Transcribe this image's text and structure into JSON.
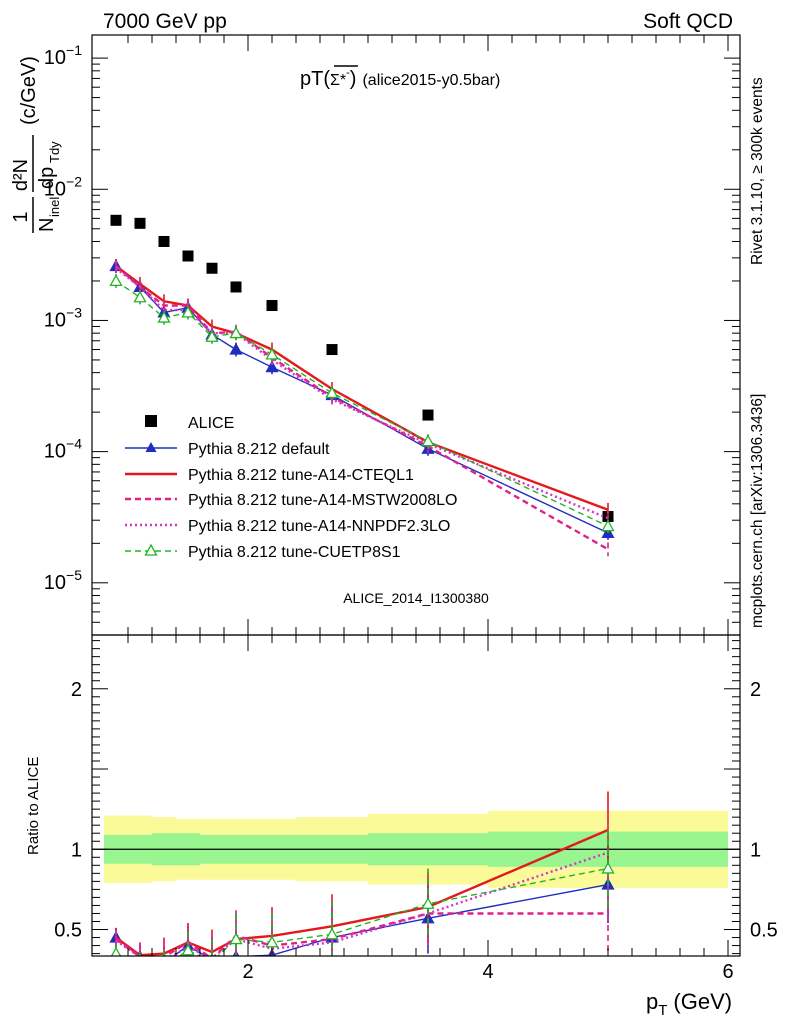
{
  "header": {
    "left": "7000 GeV pp",
    "right": "Soft QCD"
  },
  "side": {
    "rivet": "Rivet 3.1.10, ≥ 300k events",
    "mcplots": "mcplots.cern.ch [arXiv:1306.3436]"
  },
  "plot_title": {
    "prefix": "pT(",
    "particle": "Σ*",
    "charge": "-",
    "suffix": ")",
    "name": "(alice2015-y0.5bar)"
  },
  "watermark": "ALICE_2014_I1300380",
  "labels": {
    "ylabel_top_num": "1",
    "ylabel_top_den": "N",
    "ylabel_top_den_sub": "inel",
    "ylabel_top_frac_num": "d²N",
    "ylabel_top_frac_den": "dp",
    "ylabel_top_frac_den_sub": "Tdy",
    "ylabel_top_units": "(c/GeV)",
    "ylabel_bottom": "Ratio to ALICE",
    "xlabel_main": "p",
    "xlabel_sub": "T",
    "xlabel_units": "(GeV)"
  },
  "colors": {
    "alice": "#000000",
    "default": "#1f2ebf",
    "cteql1": "#e31a1c",
    "mstw": "#e0218a",
    "nnpdf": "#d633c9",
    "cuetp": "#22b522",
    "band_inner": "#99f58f",
    "band_outer": "#fafa99"
  },
  "chart_data": [
    {
      "type": "scatter",
      "title": "pT(Σ*-bar) (alice2015-y0.5bar)",
      "xlabel": "p_T (GeV)",
      "ylabel": "1/N_inel d²N/dp_T dy (c/GeV)",
      "yscale": "log",
      "xlim": [
        0.7,
        6.1
      ],
      "ylim": [
        4e-06,
        0.15
      ],
      "y_ticks": [
        1e-05,
        0.0001,
        0.001,
        0.01,
        0.1
      ],
      "y_tick_labels": [
        {
          "base": "10",
          "exp": "−5"
        },
        {
          "base": "10",
          "exp": "−4"
        },
        {
          "base": "10",
          "exp": "−3"
        },
        {
          "base": "10",
          "exp": "−2"
        },
        {
          "base": "10",
          "exp": "−1"
        }
      ],
      "legend": [
        "ALICE",
        "Pythia 8.212 default",
        "Pythia 8.212 tune-A14-CTEQL1",
        "Pythia 8.212 tune-A14-MSTW2008LO",
        "Pythia 8.212 tune-A14-NNPDF2.3LO",
        "Pythia 8.212 tune-CUETP8S1"
      ],
      "x": [
        0.9,
        1.1,
        1.3,
        1.5,
        1.7,
        1.9,
        2.2,
        2.7,
        3.5,
        5.0
      ],
      "series": [
        {
          "name": "ALICE",
          "values": [
            0.0058,
            0.0055,
            0.004,
            0.0031,
            0.0025,
            0.0018,
            0.0013,
            0.0006,
            0.00019,
            3.2e-05
          ]
        },
        {
          "name": "Pythia 8.212 default",
          "values": [
            0.0026,
            0.0018,
            0.00115,
            0.00125,
            0.00078,
            0.0006,
            0.00044,
            0.00027,
            0.000105,
            2.4e-05
          ]
        },
        {
          "name": "Pythia 8.212 tune-A14-CTEQL1",
          "values": [
            0.0026,
            0.0019,
            0.0014,
            0.0013,
            0.0009,
            0.0008,
            0.0006,
            0.0003,
            0.000118,
            3.6e-05
          ]
        },
        {
          "name": "Pythia 8.212 tune-A14-MSTW2008LO",
          "values": [
            0.0026,
            0.0018,
            0.0013,
            0.0013,
            0.0008,
            0.00082,
            0.00052,
            0.00026,
            0.00011,
            1.8e-05
          ]
        },
        {
          "name": "Pythia 8.212 tune-A14-NNPDF2.3LO",
          "values": [
            0.0025,
            0.0018,
            0.0012,
            0.0012,
            0.0008,
            0.0008,
            0.0005,
            0.00025,
            0.000115,
            3.1e-05
          ]
        },
        {
          "name": "Pythia 8.212 tune-CUETP8S1",
          "values": [
            0.002,
            0.0015,
            0.00105,
            0.00115,
            0.00075,
            0.0008,
            0.00055,
            0.00028,
            0.00012,
            2.7e-05
          ]
        }
      ]
    },
    {
      "type": "line",
      "title": "Ratio to ALICE",
      "xlabel": "p_T (GeV)",
      "ylabel": "Ratio to ALICE",
      "xlim": [
        0.7,
        6.1
      ],
      "ylim": [
        0.335,
        2.335
      ],
      "x_ticks": [
        2,
        4,
        6
      ],
      "y_ticks": [
        0.5,
        1,
        2
      ],
      "x": [
        0.9,
        1.1,
        1.3,
        1.5,
        1.7,
        1.9,
        2.2,
        2.7,
        3.5,
        5.0
      ],
      "band_edges": [
        0.8,
        1.0,
        1.2,
        1.4,
        1.6,
        1.8,
        2.0,
        2.4,
        3.0,
        4.0,
        6.0
      ],
      "band_inner_halfwidth": [
        0.09,
        0.09,
        0.1,
        0.1,
        0.09,
        0.09,
        0.09,
        0.09,
        0.1,
        0.11
      ],
      "band_outer_halfwidth": [
        0.21,
        0.21,
        0.2,
        0.19,
        0.19,
        0.19,
        0.19,
        0.2,
        0.22,
        0.24
      ],
      "series": [
        {
          "name": "Pythia 8.212 default",
          "values": [
            0.45,
            0.33,
            0.29,
            0.4,
            0.31,
            0.33,
            0.34,
            0.45,
            0.57,
            0.78
          ]
        },
        {
          "name": "Pythia 8.212 tune-A14-CTEQL1",
          "values": [
            0.45,
            0.34,
            0.35,
            0.42,
            0.36,
            0.44,
            0.46,
            0.52,
            0.64,
            1.12
          ]
        },
        {
          "name": "Pythia 8.212 tune-A14-MSTW2008LO",
          "values": [
            0.44,
            0.33,
            0.33,
            0.42,
            0.32,
            0.46,
            0.4,
            0.44,
            0.6,
            0.6
          ]
        },
        {
          "name": "Pythia 8.212 tune-A14-NNPDF2.3LO",
          "values": [
            0.43,
            0.33,
            0.31,
            0.39,
            0.32,
            0.44,
            0.38,
            0.42,
            0.6,
            0.98
          ]
        },
        {
          "name": "Pythia 8.212 tune-CUETP8S1",
          "values": [
            0.35,
            0.28,
            0.27,
            0.37,
            0.3,
            0.44,
            0.42,
            0.47,
            0.66,
            0.88
          ]
        }
      ]
    }
  ]
}
